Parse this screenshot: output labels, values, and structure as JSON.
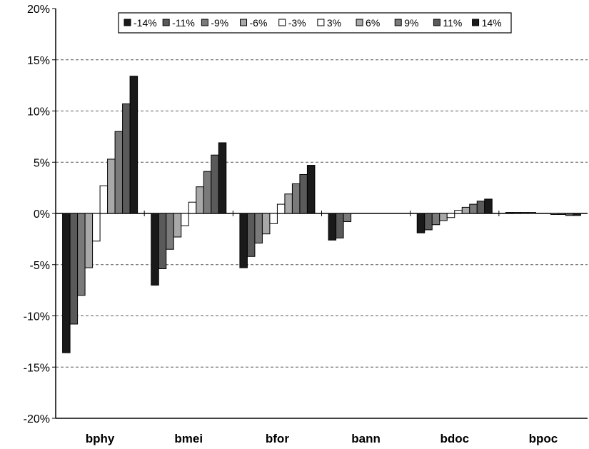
{
  "chart_data": {
    "type": "bar",
    "title": "",
    "xlabel": "",
    "ylabel": "",
    "ylim": [
      -20,
      20
    ],
    "yticks": [
      "20%",
      "15%",
      "10%",
      "5%",
      "0%",
      "-5%",
      "-10%",
      "-15%",
      "-20%"
    ],
    "grid": "horizontal dashed",
    "legend_position": "top",
    "categories": [
      "bphy",
      "bmei",
      "bfor",
      "bann",
      "bdoc",
      "bpoc"
    ],
    "series": [
      {
        "name": "-14%",
        "color": "#1a1a1a",
        "values": [
          -13.6,
          -7.0,
          -5.3,
          -2.6,
          -1.9,
          0.1
        ]
      },
      {
        "name": "-11%",
        "color": "#5a5a5a",
        "values": [
          -10.8,
          -5.4,
          -4.2,
          -2.4,
          -1.6,
          0.1
        ]
      },
      {
        "name": "-9%",
        "color": "#7a7a7a",
        "values": [
          -8.0,
          -3.5,
          -2.9,
          -0.8,
          -1.1,
          0.1
        ]
      },
      {
        "name": "-6%",
        "color": "#a8a8a8",
        "values": [
          -5.3,
          -2.3,
          -2.0,
          0.0,
          -0.7,
          0.1
        ]
      },
      {
        "name": "-3%",
        "color": "#ffffff",
        "values": [
          -2.7,
          -1.2,
          -1.0,
          0.0,
          -0.4,
          0.0
        ]
      },
      {
        "name": "3%",
        "color": "#ffffff",
        "values": [
          2.7,
          1.1,
          0.9,
          0.0,
          0.3,
          0.0
        ]
      },
      {
        "name": "6%",
        "color": "#a8a8a8",
        "values": [
          5.3,
          2.6,
          1.9,
          0.0,
          0.6,
          -0.1
        ]
      },
      {
        "name": "9%",
        "color": "#7a7a7a",
        "values": [
          8.0,
          4.1,
          2.9,
          0.0,
          0.9,
          -0.1
        ]
      },
      {
        "name": "11%",
        "color": "#5a5a5a",
        "values": [
          10.7,
          5.7,
          3.8,
          0.0,
          1.2,
          -0.2
        ]
      },
      {
        "name": "14%",
        "color": "#1a1a1a",
        "values": [
          13.4,
          6.9,
          4.7,
          0.0,
          1.4,
          -0.2
        ]
      }
    ]
  }
}
